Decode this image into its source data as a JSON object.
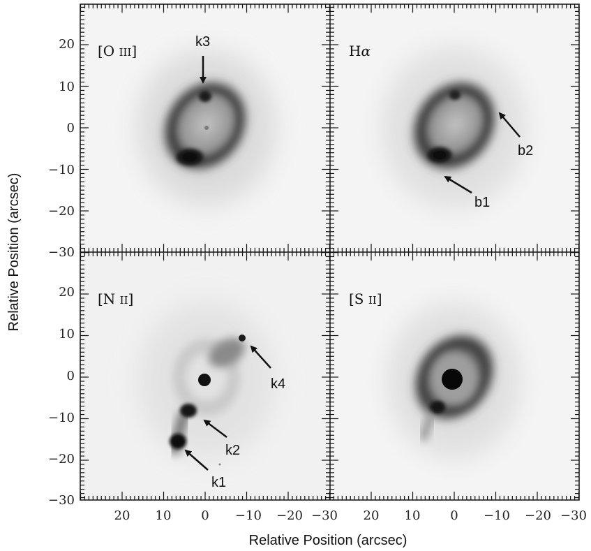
{
  "figure": {
    "x_axis_title": "Relative Position (arcsec)",
    "y_axis_title": "Relative Position (arcsec)",
    "x_tick_labels": [
      "20",
      "10",
      "0",
      "−10",
      "−20",
      "−30"
    ],
    "y_tick_labels": [
      "20",
      "10",
      "0",
      "−10",
      "−20",
      "−30"
    ]
  },
  "panels": [
    {
      "id": "oiii",
      "label_main": "[O ",
      "label_ion": "III",
      "label_close": "]",
      "annotations": [
        {
          "text": "k3"
        }
      ]
    },
    {
      "id": "halpha",
      "label_main": "H",
      "label_greek": "α",
      "annotations": [
        {
          "text": "b2"
        },
        {
          "text": "b1"
        }
      ]
    },
    {
      "id": "nii",
      "label_main": "[N ",
      "label_ion": "II",
      "label_close": "]",
      "annotations": [
        {
          "text": "k4"
        },
        {
          "text": "k2"
        },
        {
          "text": "k1"
        }
      ]
    },
    {
      "id": "sii",
      "label_main": "[S ",
      "label_ion": "II",
      "label_close": "]",
      "annotations": []
    }
  ],
  "colors": {
    "background_panel": "#f3f3f3",
    "nebula_dark": "#141414",
    "frame": "#111111"
  }
}
